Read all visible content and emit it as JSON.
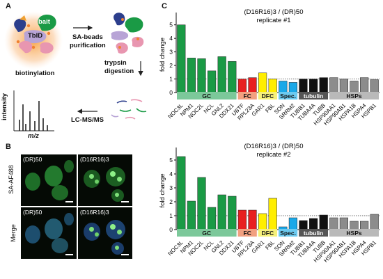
{
  "panels": {
    "a": "A",
    "b": "B",
    "c": "C"
  },
  "panel_a": {
    "bait": "bait",
    "tbid": "TbID",
    "biotinylation": "biotinylation",
    "sa_beads": "SA-beads",
    "purification": "purification",
    "trypsin": "trypsin",
    "digestion": "digestion",
    "lcms": "LC-MS/MS",
    "intensity": "intensity",
    "mz": "m/z"
  },
  "panel_b": {
    "row1_label": "SA-AF488",
    "row2_label": "Merge",
    "tiles": [
      "(DR)50",
      "(D16R16)3",
      "(DR)50",
      "(D16R16)3"
    ]
  },
  "chart_data": [
    {
      "type": "bar",
      "title": "(D16R16)3 / (DR)50",
      "subtitle": "replicate #1",
      "ylabel": "fold change",
      "ylim": [
        0,
        5.6
      ],
      "yticks": [
        0,
        1,
        2,
        3,
        4,
        5
      ],
      "reference_line": 1,
      "categories": [
        "NOC3L",
        "NPM1",
        "NOC2L",
        "NCL",
        "GNL2",
        "DDX21",
        "UBTF",
        "RPL23A",
        "GAR1",
        "FBL",
        "SON",
        "SRRM2",
        "TUBB1",
        "TUBA4A",
        "TUBB",
        "HSP90AA1",
        "HSP90AB1",
        "HSPA1B",
        "HSPA4",
        "HSPB1"
      ],
      "values": [
        5.0,
        2.55,
        2.5,
        1.6,
        2.65,
        2.3,
        1.0,
        1.1,
        1.45,
        1.0,
        0.85,
        0.75,
        1.0,
        1.0,
        1.1,
        1.1,
        1.0,
        0.85,
        1.1,
        0.95
      ],
      "groups": [
        {
          "label": "GC",
          "start": 0,
          "end": 5,
          "color": "#7cc89a"
        },
        {
          "label": "FC",
          "start": 6,
          "end": 7,
          "color": "#f2a080"
        },
        {
          "label": "DFC",
          "start": 8,
          "end": 9,
          "color": "#f5f07a"
        },
        {
          "label": "Spec.",
          "start": 10,
          "end": 11,
          "color": "#6ccaf0"
        },
        {
          "label": "tubulin",
          "start": 12,
          "end": 14,
          "color": "#555555"
        },
        {
          "label": "HSPs",
          "start": 15,
          "end": 19,
          "color": "#b9b9b9"
        }
      ]
    },
    {
      "type": "bar",
      "title": "(D16R16)3 / (DR)50",
      "subtitle": "replicate #2",
      "ylabel": "fold change",
      "ylim": [
        0,
        5.6
      ],
      "yticks": [
        0,
        1,
        2,
        3,
        4,
        5
      ],
      "reference_line": 1,
      "categories": [
        "NOC3L",
        "NPM1",
        "NOC2L",
        "NCL",
        "GNL2",
        "DDX21",
        "UBTF",
        "RPL23A",
        "GAR1",
        "FBL",
        "SON",
        "SRRM2",
        "TUBB1",
        "TUBA4A",
        "TUBB",
        "HSP90AA1",
        "HSP90AB1",
        "HSPA1B",
        "HSPA4",
        "HSPB1"
      ],
      "values": [
        5.25,
        2.05,
        3.75,
        1.6,
        2.5,
        2.4,
        1.4,
        1.4,
        1.15,
        2.25,
        0.2,
        0.85,
        0.65,
        0.8,
        1.05,
        0.85,
        0.85,
        0.6,
        0.6,
        1.1
      ],
      "groups": [
        {
          "label": "GC",
          "start": 0,
          "end": 5,
          "color": "#7cc89a"
        },
        {
          "label": "FC",
          "start": 6,
          "end": 7,
          "color": "#f2a080"
        },
        {
          "label": "DFC",
          "start": 8,
          "end": 9,
          "color": "#f5f07a"
        },
        {
          "label": "Spec.",
          "start": 10,
          "end": 11,
          "color": "#6ccaf0"
        },
        {
          "label": "tubulin",
          "start": 12,
          "end": 14,
          "color": "#555555"
        },
        {
          "label": "HSPs",
          "start": 15,
          "end": 19,
          "color": "#b9b9b9"
        }
      ]
    }
  ],
  "colors": {
    "gc": "#1a9a45",
    "fc": "#e82020",
    "dfc": "#ffee00",
    "spec": "#1aa8e8",
    "tubulin": "#111111",
    "hsps": "#8c8c8c"
  }
}
